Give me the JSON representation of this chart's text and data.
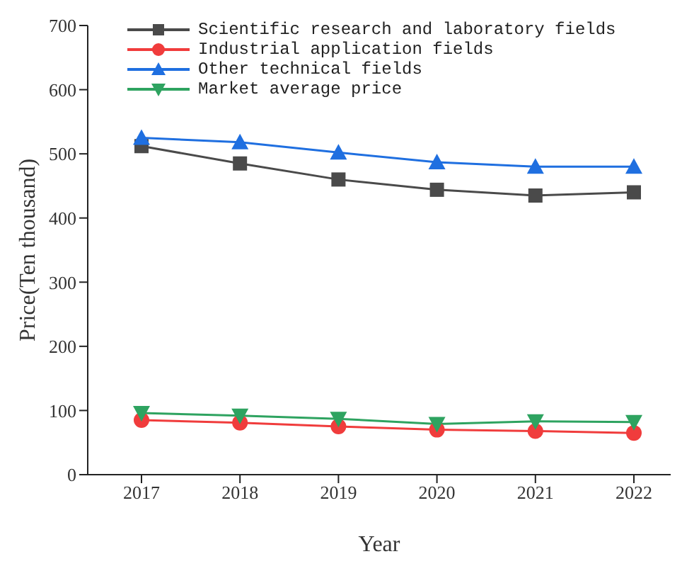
{
  "chart_data": {
    "type": "line",
    "xlabel": "Year",
    "ylabel": "Price(Ten thousand)",
    "categories": [
      "2017",
      "2018",
      "2019",
      "2020",
      "2021",
      "2022"
    ],
    "ylim": [
      0,
      700
    ],
    "yticks": [
      0,
      100,
      200,
      300,
      400,
      500,
      600,
      700
    ],
    "grid": false,
    "legend": "top left",
    "line_style": "solid",
    "series": [
      {
        "name": "Scientific research and laboratory fields",
        "color": "#4a4a4a",
        "marker": "square",
        "values": [
          512,
          485,
          460,
          444,
          435,
          440
        ]
      },
      {
        "name": "Industrial application fields",
        "color": "#f03c3c",
        "marker": "circle",
        "values": [
          85,
          81,
          75,
          70,
          68,
          65
        ]
      },
      {
        "name": "Other technical fields",
        "color": "#1f6fe0",
        "marker": "triangle",
        "values": [
          525,
          518,
          502,
          487,
          480,
          480
        ]
      },
      {
        "name": "Market average price",
        "color": "#2ea360",
        "marker": "triangle-down",
        "values": [
          96,
          92,
          87,
          79,
          83,
          82
        ]
      }
    ]
  }
}
